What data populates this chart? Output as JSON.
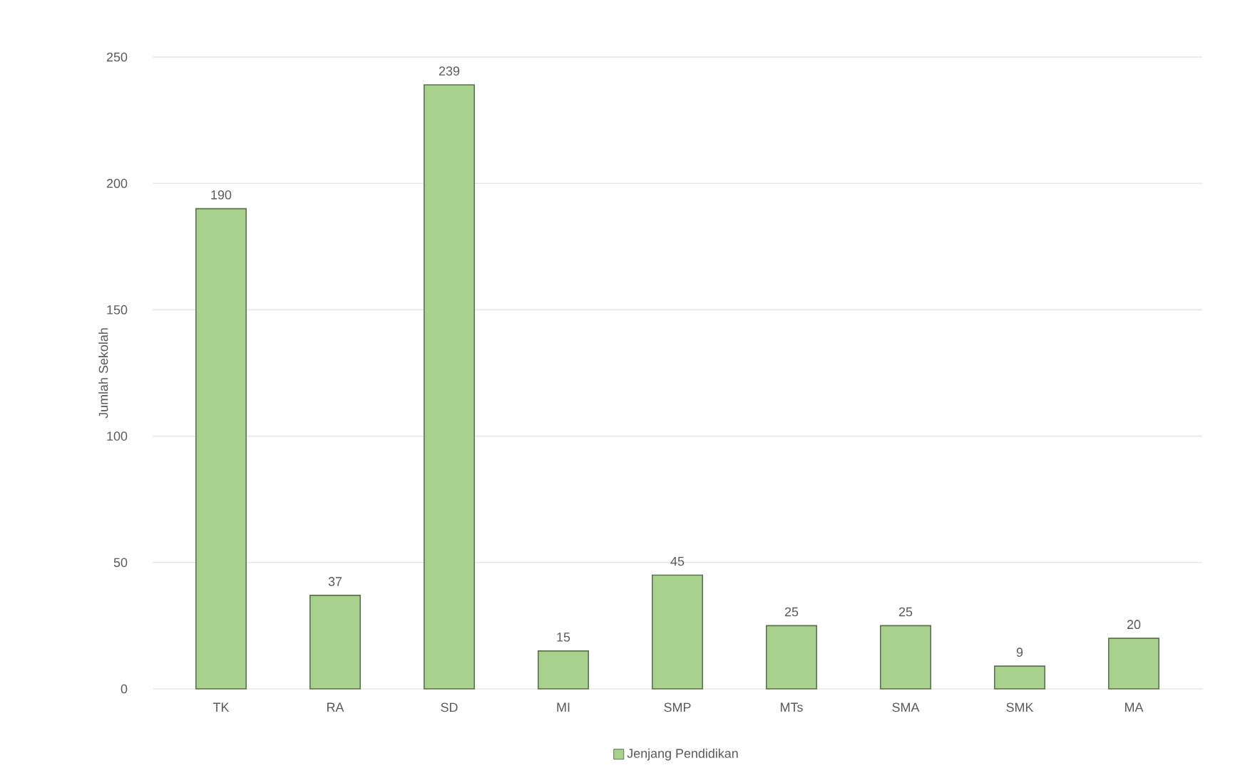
{
  "chart_data": {
    "type": "bar",
    "ylabel": "Jumlah Sekolah",
    "categories": [
      "TK",
      "RA",
      "SD",
      "MI",
      "SMP",
      "MTs",
      "SMA",
      "SMK",
      "MA"
    ],
    "series": [
      {
        "name": "Jenjang Pendidikan",
        "color": "#a9d18e",
        "values": [
          190,
          37,
          239,
          15,
          45,
          25,
          25,
          9,
          20
        ]
      }
    ],
    "ylim": [
      0,
      250
    ],
    "yticks": [
      0,
      50,
      100,
      150,
      200,
      250
    ],
    "grid": "y",
    "legend": "bottom",
    "data_labels": true
  }
}
